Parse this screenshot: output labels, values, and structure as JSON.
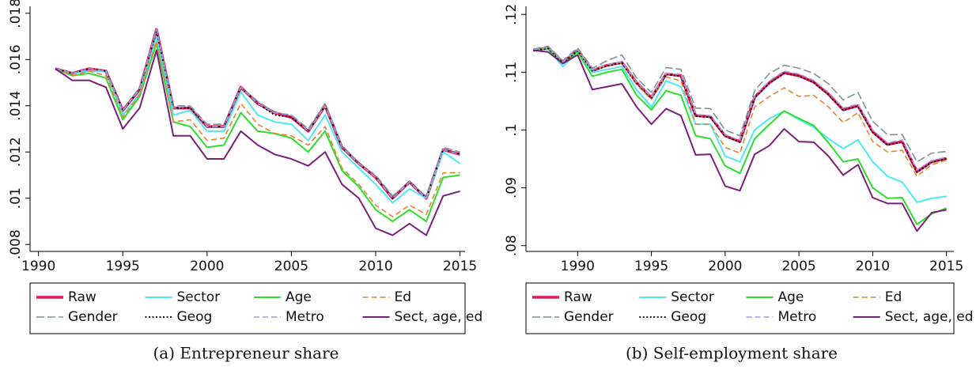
{
  "chart_data": [
    {
      "type": "line",
      "caption": "(a) Entrepreneur share",
      "legend": "bottom",
      "x": [
        1991,
        1992,
        1993,
        1994,
        1995,
        1996,
        1997,
        1998,
        1999,
        2000,
        2001,
        2002,
        2003,
        2004,
        2005,
        2006,
        2007,
        2008,
        2009,
        2010,
        2011,
        2012,
        2013,
        2014,
        2015
      ],
      "xlim": [
        1989.5,
        2015.3
      ],
      "xticks": [
        1990,
        1995,
        2000,
        2005,
        2010,
        2015
      ],
      "ylim": [
        0.0077,
        0.0183
      ],
      "yticks": [
        {
          "value": 0.008,
          "label": ".008"
        },
        {
          "value": 0.01,
          "label": ".01"
        },
        {
          "value": 0.012,
          "label": ".012"
        },
        {
          "value": 0.014,
          "label": ".014"
        },
        {
          "value": 0.016,
          "label": ".016"
        },
        {
          "value": 0.018,
          "label": ".018"
        }
      ],
      "series": [
        {
          "name": "Raw",
          "color": "#e8175d",
          "style": "thick",
          "values": [
            0.0156,
            0.0154,
            0.0156,
            0.0155,
            0.0138,
            0.0147,
            0.0173,
            0.0139,
            0.0139,
            0.0131,
            0.0131,
            0.0148,
            0.0141,
            0.0137,
            0.0135,
            0.0129,
            0.014,
            0.0122,
            0.0115,
            0.0109,
            0.01,
            0.0107,
            0.01,
            0.0121,
            0.0119
          ]
        },
        {
          "name": "Sector",
          "color": "#4fe8f5",
          "style": "solid",
          "values": [
            0.0156,
            0.0154,
            0.0155,
            0.0155,
            0.0136,
            0.0145,
            0.017,
            0.0136,
            0.0138,
            0.0129,
            0.0129,
            0.0146,
            0.0136,
            0.0133,
            0.0132,
            0.0125,
            0.0136,
            0.012,
            0.0113,
            0.0106,
            0.0098,
            0.0104,
            0.01,
            0.012,
            0.0115
          ]
        },
        {
          "name": "Age",
          "color": "#2ede2e",
          "style": "solid",
          "values": [
            0.0156,
            0.0153,
            0.0154,
            0.0152,
            0.0134,
            0.0144,
            0.0167,
            0.0133,
            0.0131,
            0.0122,
            0.0123,
            0.0137,
            0.0129,
            0.0128,
            0.0126,
            0.012,
            0.0129,
            0.0112,
            0.0105,
            0.0095,
            0.009,
            0.0095,
            0.009,
            0.0109,
            0.011
          ]
        },
        {
          "name": "Ed",
          "color": "#e8842c",
          "style": "dash",
          "values": [
            0.0156,
            0.0153,
            0.0155,
            0.0153,
            0.0135,
            0.0145,
            0.0168,
            0.0133,
            0.0134,
            0.0125,
            0.0126,
            0.0141,
            0.0132,
            0.0128,
            0.0127,
            0.0123,
            0.0131,
            0.0113,
            0.0106,
            0.0097,
            0.0092,
            0.0097,
            0.0093,
            0.0111,
            0.0111
          ]
        },
        {
          "name": "Gender",
          "color": "#7f9393",
          "style": "longdash",
          "values": [
            0.0156,
            0.0154,
            0.0156,
            0.0155,
            0.0138,
            0.0148,
            0.0173,
            0.014,
            0.014,
            0.0132,
            0.0132,
            0.0148,
            0.0142,
            0.0137,
            0.0136,
            0.013,
            0.0141,
            0.0123,
            0.0115,
            0.011,
            0.0101,
            0.0107,
            0.0101,
            0.0122,
            0.012
          ]
        },
        {
          "name": "Geog",
          "color": "#000000",
          "style": "dot",
          "values": [
            0.0156,
            0.0154,
            0.0156,
            0.0155,
            0.0138,
            0.0147,
            0.0172,
            0.0139,
            0.0139,
            0.0131,
            0.0131,
            0.0148,
            0.0141,
            0.0136,
            0.0135,
            0.0129,
            0.014,
            0.0122,
            0.0115,
            0.0109,
            0.01,
            0.0107,
            0.01,
            0.0121,
            0.0119
          ]
        },
        {
          "name": "Metro",
          "color": "#9c9ce3",
          "style": "dash",
          "values": [
            0.0156,
            0.0154,
            0.0156,
            0.0155,
            0.0138,
            0.0147,
            0.0173,
            0.0139,
            0.014,
            0.0131,
            0.0131,
            0.0148,
            0.0141,
            0.0137,
            0.0136,
            0.0129,
            0.014,
            0.0122,
            0.0115,
            0.0109,
            0.01,
            0.0107,
            0.01,
            0.0121,
            0.0119
          ]
        },
        {
          "name": "Sect, age, ed",
          "color": "#7a1f7a",
          "style": "solid",
          "values": [
            0.0156,
            0.0151,
            0.0151,
            0.0148,
            0.013,
            0.0139,
            0.0164,
            0.0127,
            0.0127,
            0.0117,
            0.0117,
            0.0129,
            0.0123,
            0.0119,
            0.0117,
            0.0114,
            0.012,
            0.0106,
            0.01,
            0.0087,
            0.0084,
            0.0089,
            0.0084,
            0.0101,
            0.0103
          ]
        }
      ]
    },
    {
      "type": "line",
      "caption": "(b) Self-employment share",
      "legend": "bottom",
      "x": [
        1987,
        1988,
        1989,
        1990,
        1991,
        1992,
        1993,
        1994,
        1995,
        1996,
        1997,
        1998,
        1999,
        2000,
        2001,
        2002,
        2003,
        2004,
        2005,
        2006,
        2007,
        2008,
        2009,
        2010,
        2011,
        2012,
        2013,
        2014,
        2015
      ],
      "xlim": [
        1986.5,
        2015.5
      ],
      "xticks": [
        1990,
        1995,
        2000,
        2005,
        2010,
        2015
      ],
      "ylim": [
        0.079,
        0.1214
      ],
      "yticks": [
        {
          "value": 0.08,
          "label": ".08"
        },
        {
          "value": 0.09,
          "label": ".09"
        },
        {
          "value": 0.1,
          "label": ".1"
        },
        {
          "value": 0.11,
          "label": ".11"
        },
        {
          "value": 0.12,
          "label": ".12"
        }
      ],
      "series": [
        {
          "name": "Raw",
          "color": "#e8175d",
          "style": "thick",
          "values": [
            0.1138,
            0.1142,
            0.1117,
            0.1138,
            0.1103,
            0.1112,
            0.1117,
            0.1082,
            0.1056,
            0.1097,
            0.1094,
            0.1025,
            0.1023,
            0.099,
            0.098,
            0.1057,
            0.1082,
            0.1099,
            0.1094,
            0.1083,
            0.1062,
            0.1035,
            0.1042,
            0.0997,
            0.0975,
            0.098,
            0.0928,
            0.0945,
            0.0951
          ]
        },
        {
          "name": "Sector",
          "color": "#4fe8f5",
          "style": "solid",
          "values": [
            0.1138,
            0.114,
            0.111,
            0.1135,
            0.11,
            0.1105,
            0.111,
            0.107,
            0.104,
            0.1085,
            0.1075,
            0.101,
            0.101,
            0.0955,
            0.0945,
            0.1,
            0.102,
            0.1033,
            0.1018,
            0.1005,
            0.0985,
            0.0968,
            0.0983,
            0.0945,
            0.092,
            0.091,
            0.0875,
            0.0882,
            0.0885
          ]
        },
        {
          "name": "Age",
          "color": "#2ede2e",
          "style": "solid",
          "values": [
            0.1138,
            0.114,
            0.1115,
            0.1135,
            0.1093,
            0.11,
            0.1105,
            0.106,
            0.1035,
            0.1068,
            0.106,
            0.099,
            0.0985,
            0.0938,
            0.0925,
            0.0985,
            0.101,
            0.1033,
            0.102,
            0.1008,
            0.0978,
            0.0945,
            0.095,
            0.09,
            0.0882,
            0.0883,
            0.0837,
            0.0855,
            0.0865
          ]
        },
        {
          "name": "Ed",
          "color": "#e8842c",
          "style": "dash",
          "values": [
            0.1138,
            0.1142,
            0.1117,
            0.1138,
            0.1103,
            0.111,
            0.1115,
            0.1078,
            0.1053,
            0.1092,
            0.1085,
            0.101,
            0.101,
            0.097,
            0.096,
            0.104,
            0.1058,
            0.1073,
            0.1058,
            0.106,
            0.104,
            0.1013,
            0.103,
            0.098,
            0.0962,
            0.0965,
            0.092,
            0.094,
            0.0948
          ]
        },
        {
          "name": "Gender",
          "color": "#7f9393",
          "style": "longdash",
          "values": [
            0.114,
            0.1145,
            0.112,
            0.1142,
            0.1107,
            0.112,
            0.113,
            0.109,
            0.1065,
            0.1108,
            0.1105,
            0.1038,
            0.1037,
            0.1,
            0.099,
            0.1068,
            0.1098,
            0.1112,
            0.1107,
            0.1098,
            0.108,
            0.1052,
            0.1065,
            0.1015,
            0.0992,
            0.0992,
            0.0945,
            0.096,
            0.0963
          ]
        },
        {
          "name": "Geog",
          "color": "#000000",
          "style": "dot",
          "values": [
            0.1137,
            0.1141,
            0.1116,
            0.1137,
            0.1102,
            0.1111,
            0.1116,
            0.1081,
            0.1055,
            0.1096,
            0.1093,
            0.1024,
            0.1022,
            0.0989,
            0.0979,
            0.1056,
            0.1081,
            0.1098,
            0.1093,
            0.1082,
            0.1061,
            0.1034,
            0.1041,
            0.0996,
            0.0974,
            0.0979,
            0.0927,
            0.0944,
            0.095
          ]
        },
        {
          "name": "Metro",
          "color": "#9c9ce3",
          "style": "dash",
          "values": [
            0.1139,
            0.1143,
            0.1118,
            0.1139,
            0.1104,
            0.1113,
            0.1118,
            0.1083,
            0.1057,
            0.1098,
            0.1096,
            0.1027,
            0.1025,
            0.0992,
            0.0982,
            0.1059,
            0.1085,
            0.1102,
            0.1097,
            0.1086,
            0.1065,
            0.1038,
            0.1045,
            0.1,
            0.0978,
            0.0983,
            0.0931,
            0.0947,
            0.0953
          ]
        },
        {
          "name": "Sect, age, ed",
          "color": "#7a1f7a",
          "style": "solid",
          "values": [
            0.1138,
            0.1135,
            0.1115,
            0.113,
            0.107,
            0.1075,
            0.108,
            0.104,
            0.101,
            0.1037,
            0.1025,
            0.0957,
            0.0958,
            0.0903,
            0.0895,
            0.0958,
            0.0973,
            0.1002,
            0.098,
            0.0979,
            0.0955,
            0.0922,
            0.094,
            0.0883,
            0.0873,
            0.0873,
            0.0825,
            0.0857,
            0.0862
          ]
        }
      ]
    }
  ]
}
